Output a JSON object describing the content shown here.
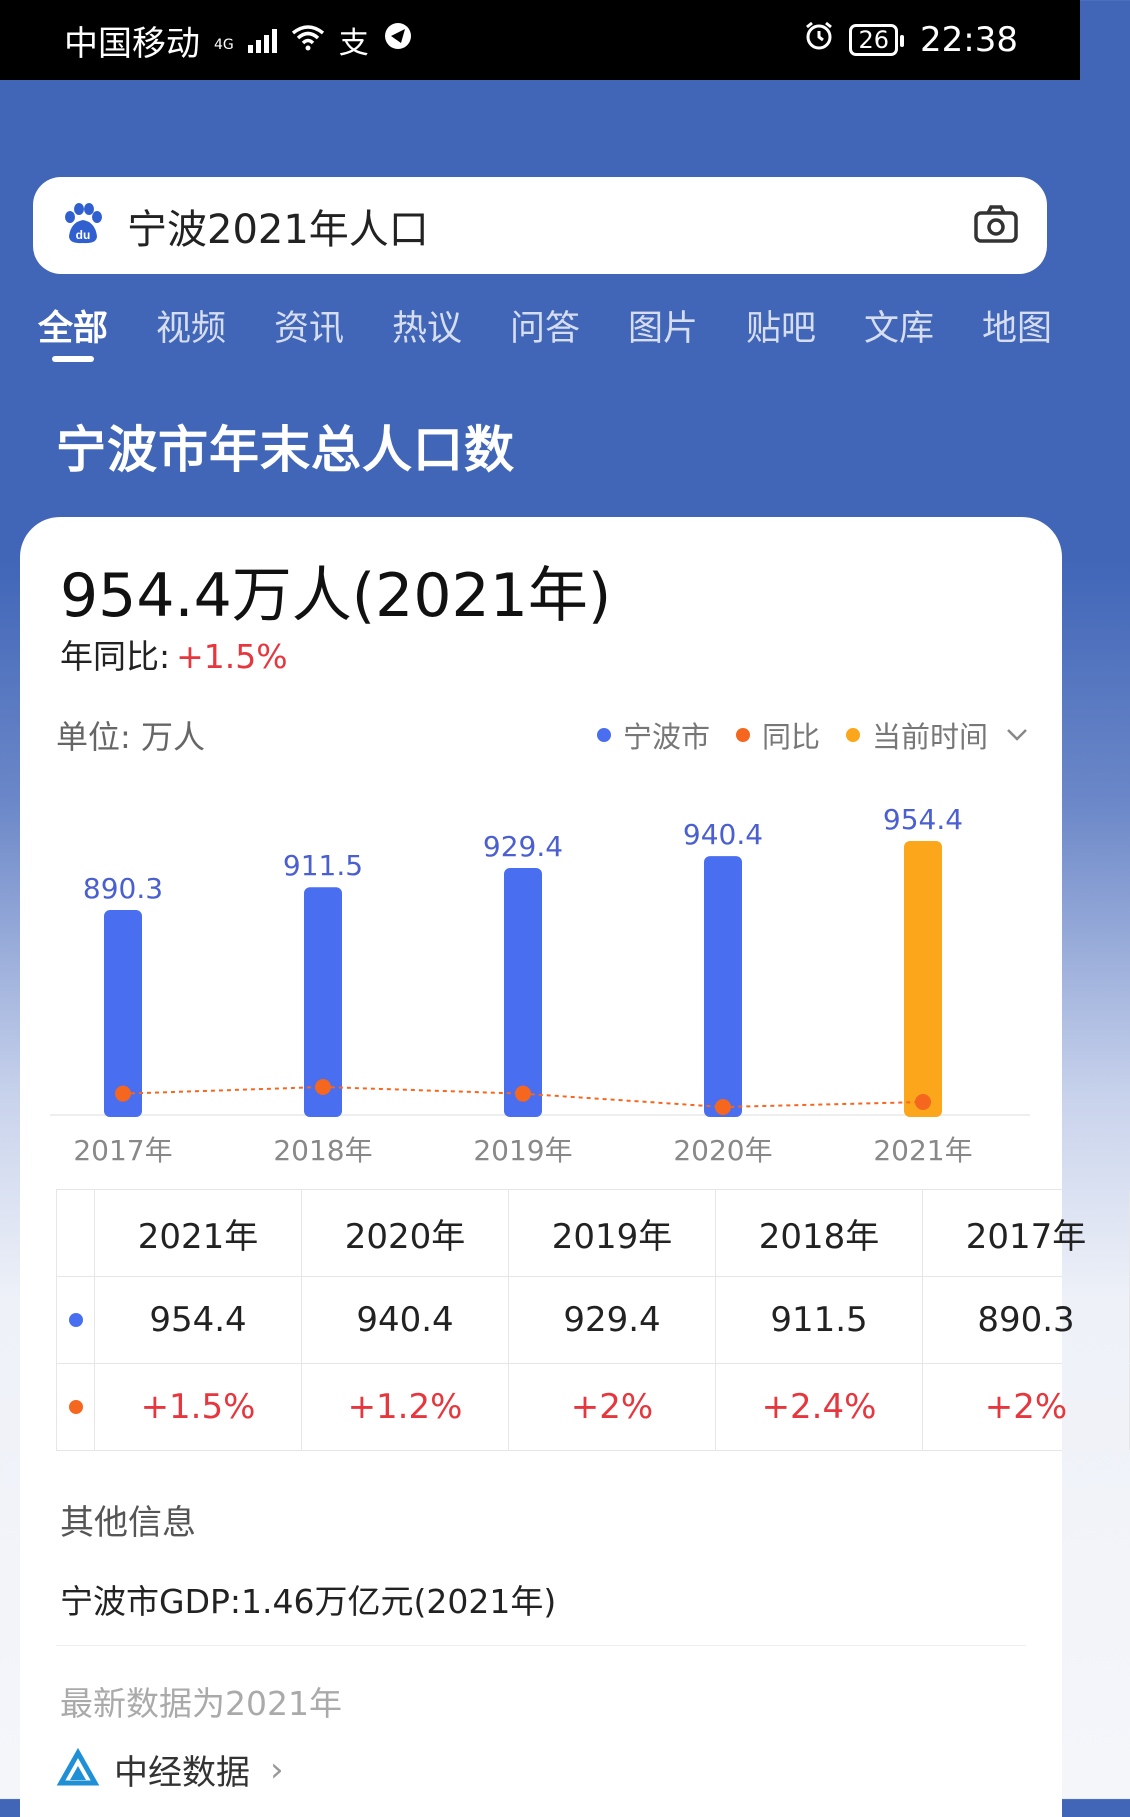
{
  "status": {
    "carrier": "中国移动",
    "net": "4G",
    "battery": "26",
    "time": "22:38"
  },
  "search": {
    "query": "宁波2021年人口"
  },
  "tabs": [
    "全部",
    "视频",
    "资讯",
    "热议",
    "问答",
    "图片",
    "贴吧",
    "文库",
    "地图"
  ],
  "page_title": "宁波市年末总人口数",
  "card": {
    "big_number": "954.4万人(2021年)",
    "yoy_label": "年同比:",
    "yoy_value": "+1.5%",
    "unit": "单位: 万人",
    "legend": [
      "宁波市",
      "同比",
      "当前时间"
    ]
  },
  "colors": {
    "primary": "#4166b8",
    "bar": "#4a6ef0",
    "current": "#fba61b",
    "yoy": "#f5661f",
    "red": "#e5373d"
  },
  "chart_data": {
    "type": "bar",
    "categories": [
      "2017年",
      "2018年",
      "2019年",
      "2020年",
      "2021年"
    ],
    "series": [
      {
        "name": "宁波市",
        "values": [
          890.3,
          911.5,
          929.4,
          940.4,
          954.4
        ]
      },
      {
        "name": "同比",
        "values": [
          2,
          2.4,
          2,
          1.2,
          1.5
        ]
      }
    ],
    "value_labels": [
      "890.3",
      "911.5",
      "929.4",
      "940.4",
      "954.4"
    ],
    "highlight_index": 4
  },
  "table": {
    "headers": [
      "2021年",
      "2020年",
      "2019年",
      "2018年",
      "2017年"
    ],
    "population": [
      "954.4",
      "940.4",
      "929.4",
      "911.5",
      "890.3"
    ],
    "yoy": [
      "+1.5%",
      "+1.2%",
      "+2%",
      "+2.4%",
      "+2%"
    ]
  },
  "other": {
    "title": "其他信息",
    "gdp": "宁波市GDP:1.46万亿元(2021年)",
    "latest": "最新数据为2021年",
    "source": "中经数据"
  }
}
